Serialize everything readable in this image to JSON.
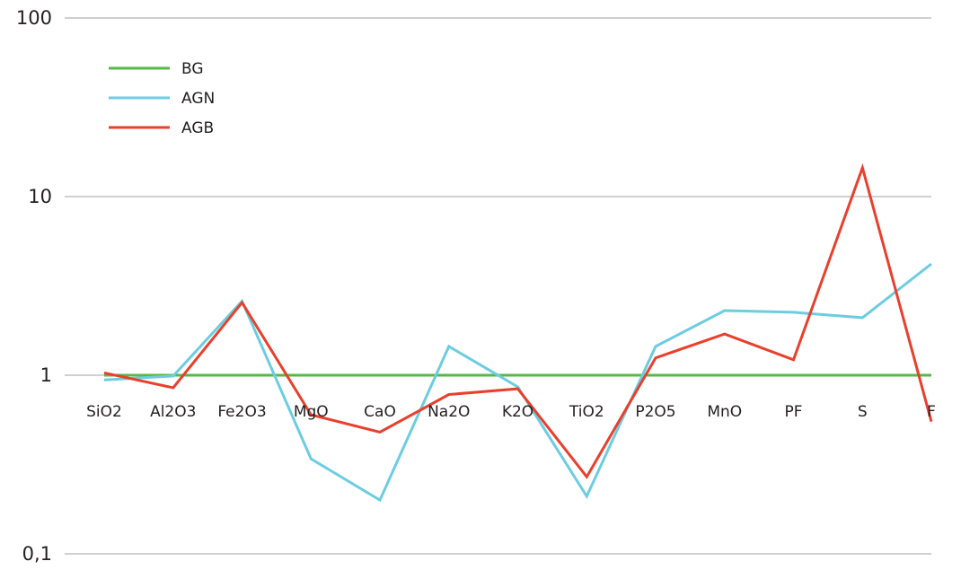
{
  "chart_data": {
    "type": "line",
    "title": "",
    "xlabel": "",
    "ylabel": "",
    "y_scale": "log",
    "ylim": [
      0.1,
      100
    ],
    "y_tick_labels": [
      "0,1",
      "1",
      "10",
      "100"
    ],
    "grid": "horizontal",
    "legend_position": "top-left",
    "categories": [
      "SiO2",
      "Al2O3",
      "Fe2O3",
      "MgO",
      "CaO",
      "Na2O",
      "K2O",
      "TiO2",
      "P2O5",
      "MnO",
      "PF",
      "S",
      "F"
    ],
    "series": [
      {
        "name": "BG",
        "color": "#57b847",
        "values": [
          1,
          1,
          1,
          1,
          1,
          1,
          1,
          1,
          1,
          1,
          1,
          1,
          1
        ]
      },
      {
        "name": "AGN",
        "color": "#6ccde0",
        "values": [
          0.94,
          0.99,
          2.6,
          0.34,
          0.2,
          1.45,
          0.86,
          0.21,
          1.45,
          2.3,
          2.25,
          2.1,
          4.2
        ]
      },
      {
        "name": "AGB",
        "color": "#e8402c",
        "values": [
          1.03,
          0.85,
          2.55,
          0.6,
          0.48,
          0.78,
          0.84,
          0.27,
          1.25,
          1.7,
          1.22,
          14.5,
          0.55
        ]
      }
    ]
  }
}
